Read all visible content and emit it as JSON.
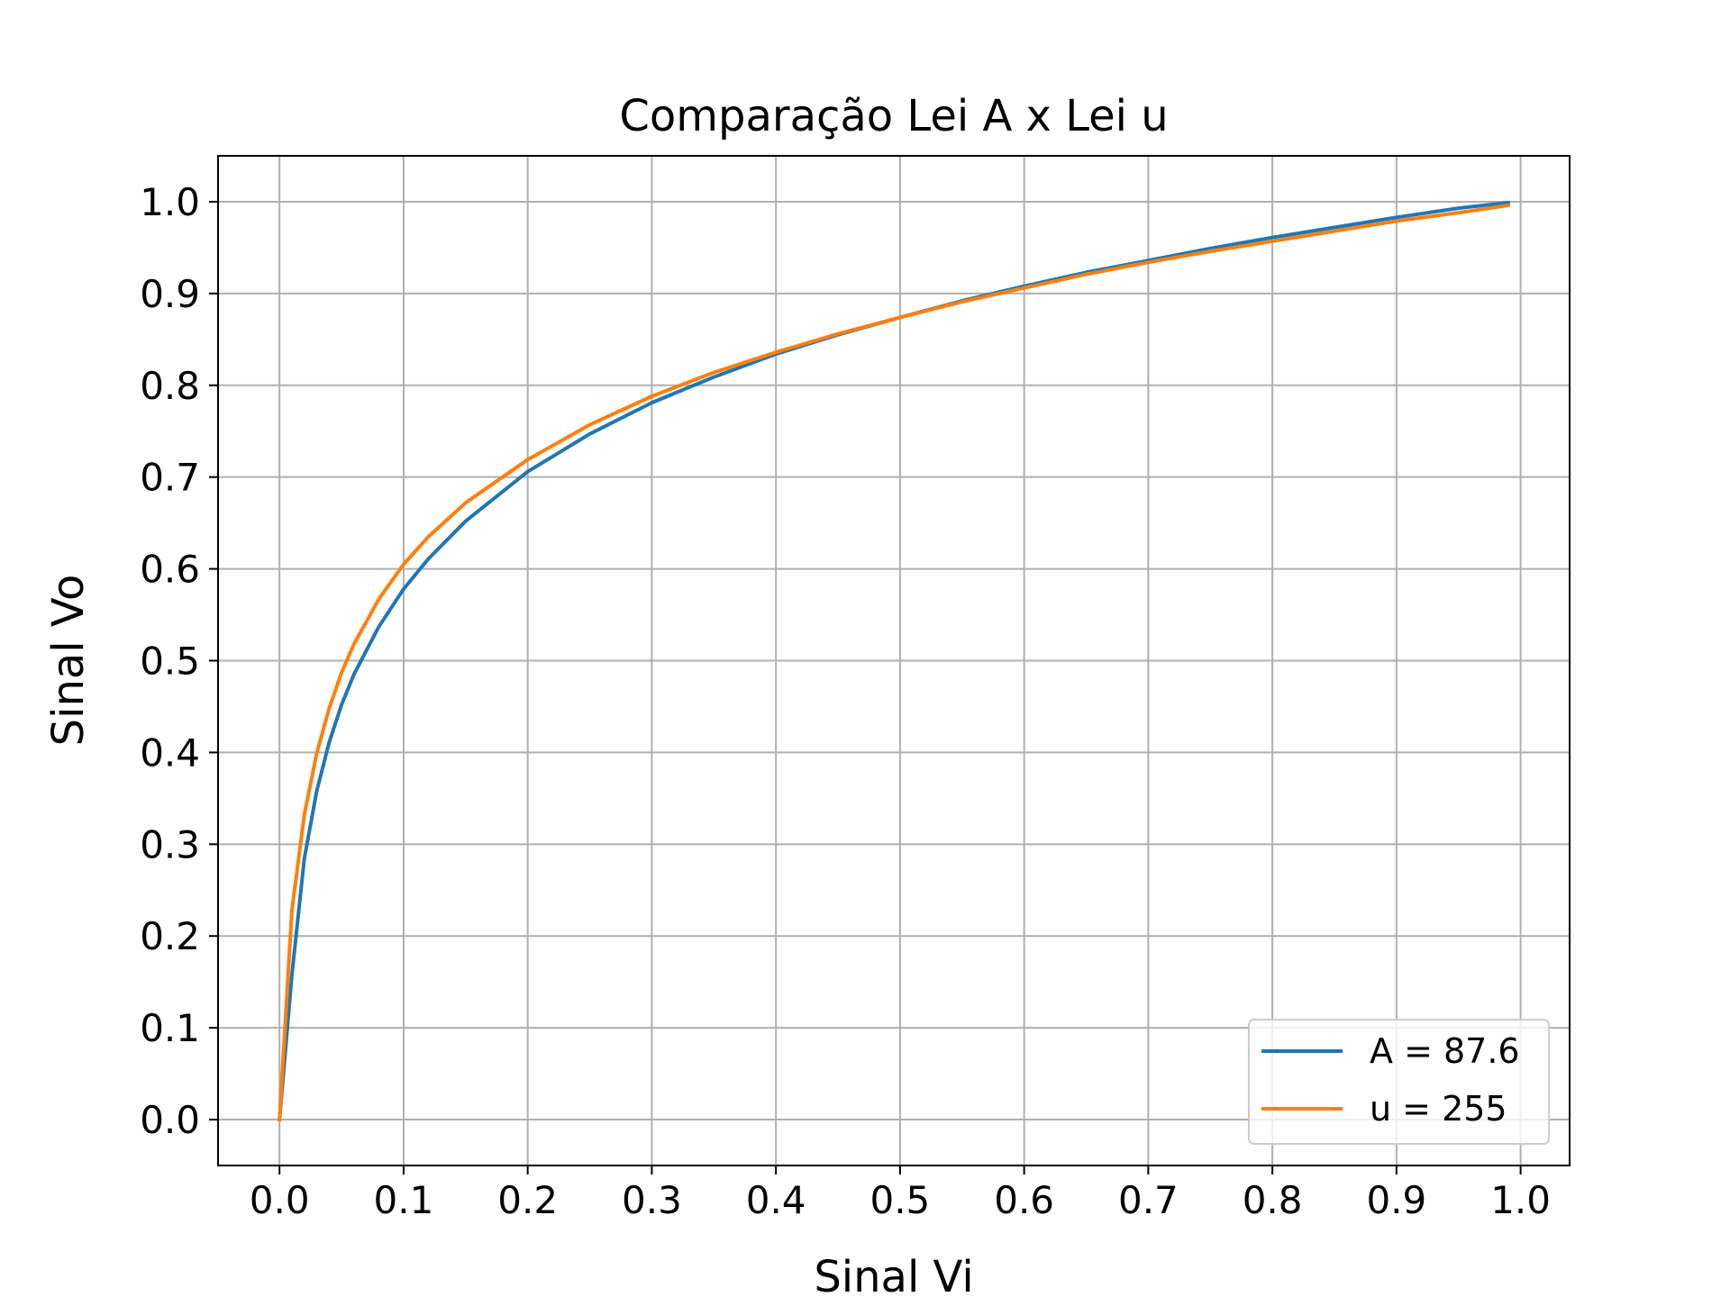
{
  "chart_data": {
    "type": "line",
    "title": "Comparação Lei A x Lei u",
    "xlabel": "Sinal Vi",
    "ylabel": "Sinal Vo",
    "xlim": [
      -0.0495,
      1.0395
    ],
    "ylim": [
      -0.05,
      1.05
    ],
    "xticks": [
      0.0,
      0.1,
      0.2,
      0.3,
      0.4,
      0.5,
      0.6,
      0.7,
      0.8,
      0.9,
      1.0
    ],
    "yticks": [
      0.0,
      0.1,
      0.2,
      0.3,
      0.4,
      0.5,
      0.6,
      0.7,
      0.8,
      0.9,
      1.0
    ],
    "xtick_labels": [
      "0.0",
      "0.1",
      "0.2",
      "0.3",
      "0.4",
      "0.5",
      "0.6",
      "0.7",
      "0.8",
      "0.9",
      "1.0"
    ],
    "ytick_labels": [
      "0.0",
      "0.1",
      "0.2",
      "0.3",
      "0.4",
      "0.5",
      "0.6",
      "0.7",
      "0.8",
      "0.9",
      "1.0"
    ],
    "grid": true,
    "legend_position": "lower-right",
    "series": [
      {
        "name": "A = 87.6",
        "color": "#1f77b4",
        "x": [
          0.0,
          0.01,
          0.02,
          0.03,
          0.04,
          0.05,
          0.06,
          0.08,
          0.1,
          0.12,
          0.15,
          0.2,
          0.25,
          0.3,
          0.35,
          0.4,
          0.45,
          0.5,
          0.55,
          0.6,
          0.65,
          0.7,
          0.75,
          0.8,
          0.85,
          0.9,
          0.95,
          0.99
        ],
        "y": [
          0.0,
          0.158,
          0.284,
          0.358,
          0.411,
          0.452,
          0.485,
          0.537,
          0.578,
          0.611,
          0.652,
          0.706,
          0.747,
          0.781,
          0.809,
          0.834,
          0.855,
          0.874,
          0.892,
          0.908,
          0.923,
          0.936,
          0.949,
          0.961,
          0.972,
          0.983,
          0.993,
          0.999
        ]
      },
      {
        "name": "u = 255",
        "color": "#ff7f0e",
        "x": [
          0.0,
          0.01,
          0.02,
          0.03,
          0.04,
          0.05,
          0.06,
          0.08,
          0.1,
          0.12,
          0.15,
          0.2,
          0.25,
          0.3,
          0.35,
          0.4,
          0.45,
          0.5,
          0.55,
          0.6,
          0.65,
          0.7,
          0.75,
          0.8,
          0.85,
          0.9,
          0.95,
          0.99
        ],
        "y": [
          0.0,
          0.228,
          0.332,
          0.399,
          0.448,
          0.487,
          0.518,
          0.567,
          0.605,
          0.635,
          0.672,
          0.719,
          0.757,
          0.788,
          0.814,
          0.836,
          0.856,
          0.874,
          0.891,
          0.906,
          0.921,
          0.934,
          0.946,
          0.957,
          0.968,
          0.979,
          0.988,
          0.996
        ]
      }
    ]
  }
}
